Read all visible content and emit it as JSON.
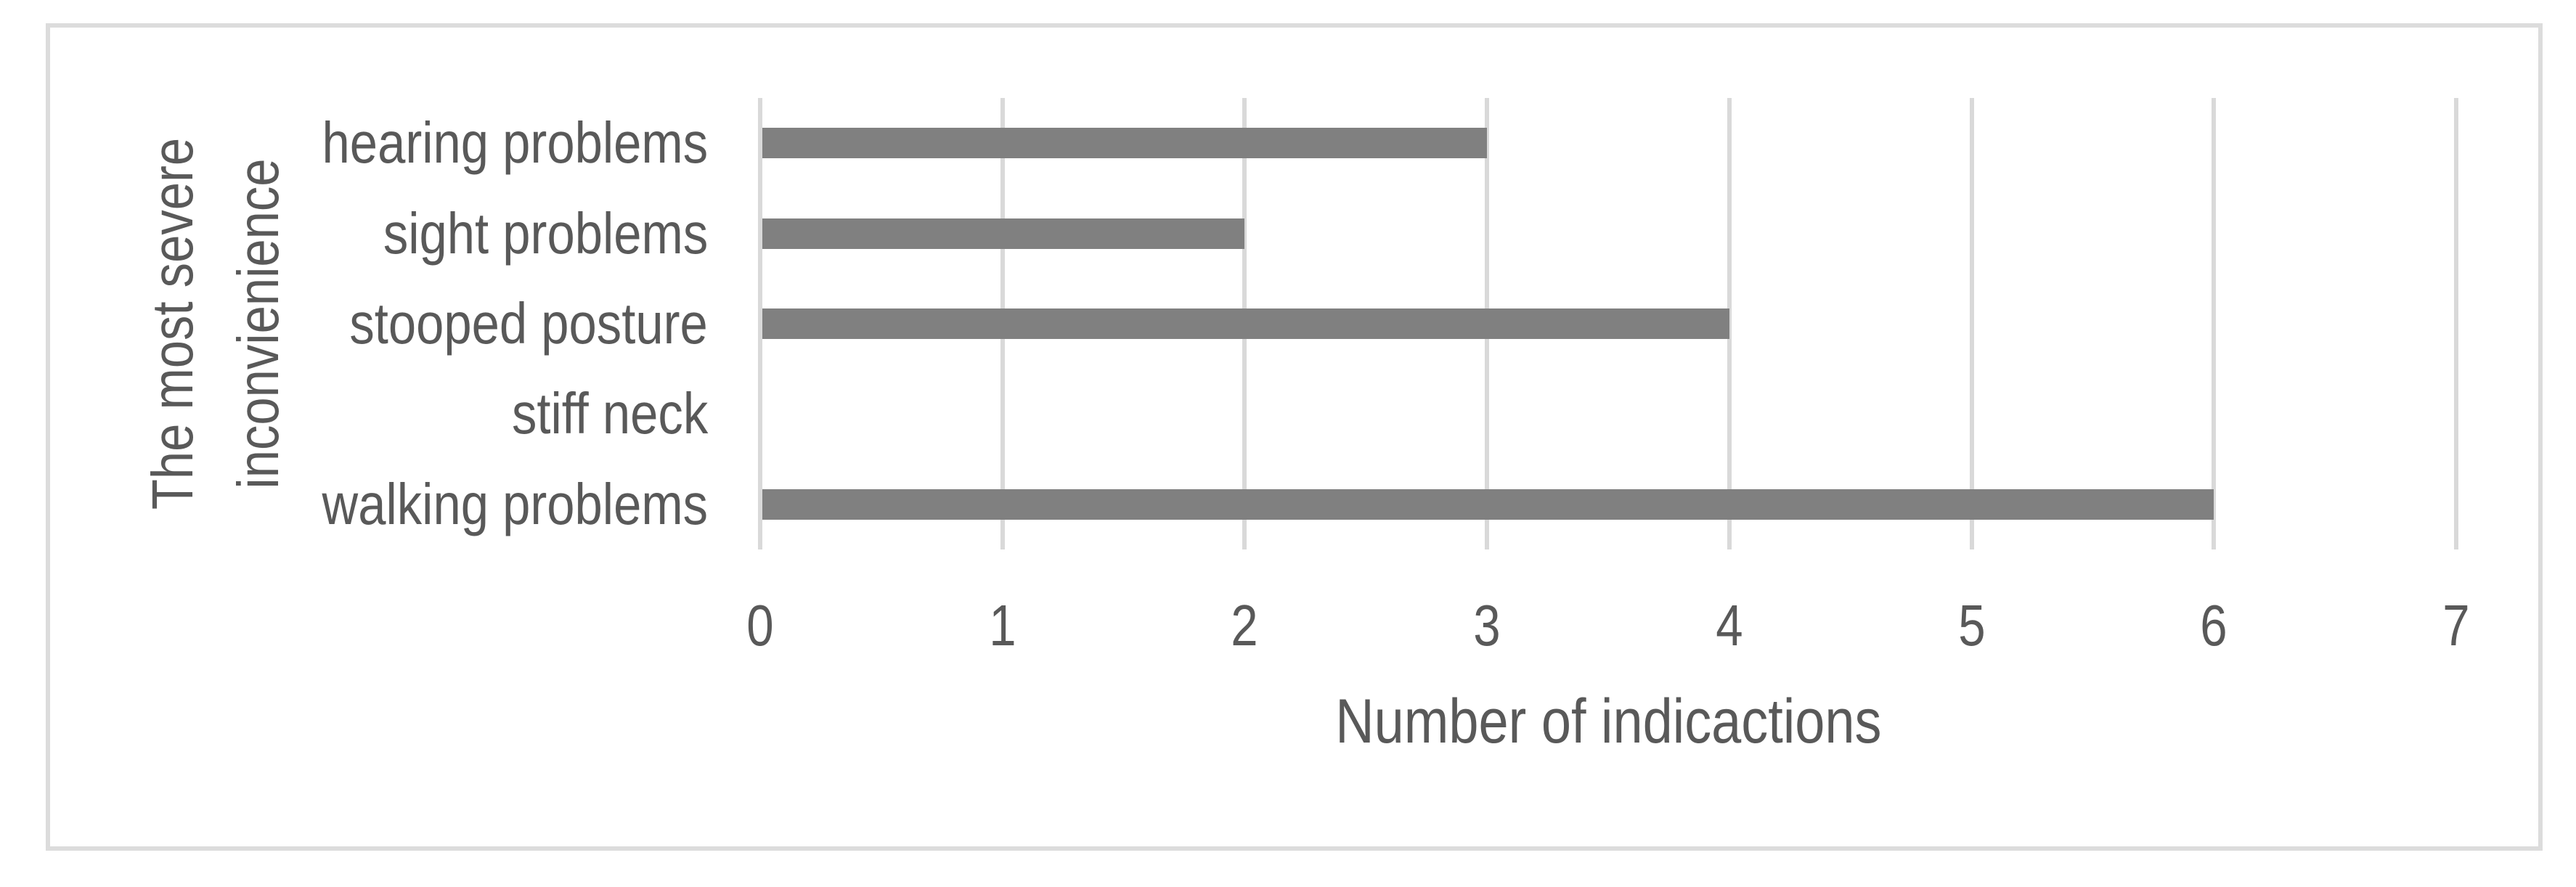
{
  "chart_data": {
    "type": "bar",
    "orientation": "horizontal",
    "title": "",
    "categories": [
      "hearing problems",
      "sight problems",
      "stooped posture",
      "stiff neck",
      "walking problems"
    ],
    "values": [
      3,
      2,
      4,
      0,
      6
    ],
    "xlabel": "Number of indicactions",
    "ylabel": "The most severe inconvienience",
    "ylabel_lines": [
      "The most severe",
      "inconvienience"
    ],
    "xlim": [
      0,
      7
    ],
    "xticks": [
      "0",
      "1",
      "2",
      "3",
      "4",
      "5",
      "6",
      "7"
    ],
    "grid": "vertical gridlines on, behind bars",
    "legend": "none",
    "colors": {
      "bar": "#808080",
      "gridline": "#d9d9d9",
      "frame_border": "#dcdcdc",
      "text": "#595959",
      "background": "#ffffff"
    }
  }
}
